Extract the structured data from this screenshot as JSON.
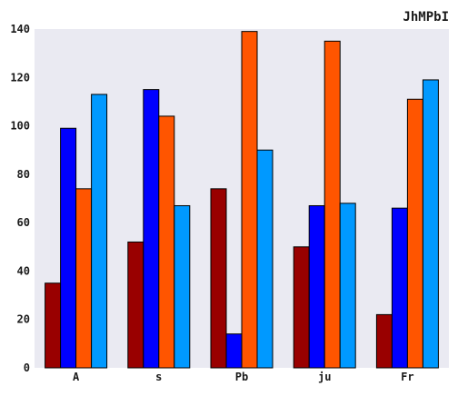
{
  "chart_data": {
    "type": "bar",
    "title": "JhMPbI",
    "xlabel": "",
    "ylabel": "",
    "categories": [
      "A",
      "s",
      "Pb",
      "ju",
      "Fr"
    ],
    "series": [
      {
        "color": "#990000",
        "values": [
          35,
          52,
          74,
          50,
          22
        ]
      },
      {
        "color": "#0000ff",
        "values": [
          99,
          115,
          14,
          67,
          66
        ]
      },
      {
        "color": "#ff5500",
        "values": [
          74,
          104,
          139,
          135,
          111
        ]
      },
      {
        "color": "#0099ff",
        "values": [
          113,
          67,
          90,
          68,
          119
        ]
      }
    ],
    "ylim": [
      0,
      140
    ],
    "yticks": [
      0,
      20,
      40,
      60,
      80,
      100,
      120,
      140
    ],
    "grid": false,
    "legend": "none",
    "plot_background": "#eaeaf2"
  }
}
